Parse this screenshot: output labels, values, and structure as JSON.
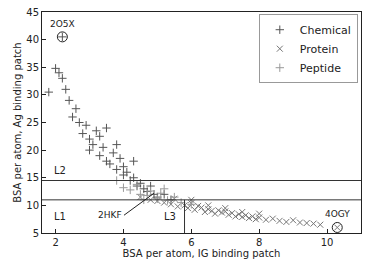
{
  "chart_data": {
    "type": "scatter",
    "x_label": "BSA per atom, IG binding patch",
    "y_label": "BSA per atom, Ag binding patch",
    "xlim": [
      1.6,
      11
    ],
    "xticks": [
      2,
      4,
      6,
      8,
      10
    ],
    "ylim": [
      5,
      45
    ],
    "yticks": [
      5,
      10,
      15,
      20,
      25,
      30,
      35,
      40,
      45
    ],
    "grid": false,
    "legend": "upper right",
    "series": [
      {
        "name": "Chemical",
        "color": "#555555",
        "marker": "plus",
        "x": [
          1.8,
          2.0,
          2.1,
          2.2,
          2.3,
          2.4,
          2.5,
          2.6,
          2.7,
          2.8,
          2.9,
          3.0,
          3.0,
          3.1,
          3.2,
          3.3,
          3.3,
          3.4,
          3.5,
          3.5,
          3.6,
          3.7,
          3.8,
          3.8,
          3.9,
          4.0,
          4.0,
          4.1,
          4.2,
          4.3,
          4.3,
          4.4,
          4.5,
          4.6,
          4.7,
          4.8,
          4.9,
          5.0,
          5.2,
          5.4,
          2.2
        ],
        "values": [
          30.5,
          34.8,
          34,
          33,
          31,
          29,
          26,
          27.5,
          25,
          23,
          24.5,
          22,
          20,
          21,
          23.5,
          19,
          22.5,
          20.5,
          18,
          24,
          17.5,
          19.5,
          16.5,
          21,
          18.5,
          15.5,
          17,
          16,
          14.5,
          15,
          18,
          13.5,
          14,
          13,
          12.5,
          13.5,
          12,
          11.5,
          12,
          11,
          40.5
        ]
      },
      {
        "name": "Protein",
        "color": "#777777",
        "marker": "x",
        "x": [
          4.5,
          4.8,
          5.0,
          5.2,
          5.4,
          5.5,
          5.6,
          5.8,
          5.9,
          6.0,
          6.1,
          6.2,
          6.3,
          6.4,
          6.5,
          6.6,
          6.7,
          6.8,
          6.9,
          7.0,
          7.1,
          7.2,
          7.3,
          7.4,
          7.5,
          7.6,
          7.7,
          7.8,
          7.9,
          8.0,
          8.2,
          8.4,
          8.6,
          8.8,
          9.0,
          9.2,
          9.4,
          9.6,
          9.8,
          10.3,
          6.0,
          6.5,
          7.0,
          7.5,
          8.0
        ],
        "values": [
          11.5,
          11,
          10.8,
          10.5,
          10.2,
          11.2,
          9.8,
          10,
          9.5,
          10.4,
          9.2,
          9.9,
          9.6,
          8.8,
          9.3,
          9.0,
          8.5,
          9.1,
          8.7,
          8.9,
          8.3,
          8.6,
          8.0,
          8.4,
          7.9,
          8.2,
          7.7,
          8.0,
          7.5,
          7.8,
          7.4,
          7.6,
          7.2,
          7.0,
          7.3,
          6.9,
          6.8,
          6.7,
          6.5,
          6.0,
          11.0,
          10.0,
          9.5,
          8.8,
          8.5
        ]
      },
      {
        "name": "Peptide",
        "color": "#999999",
        "marker": "plus",
        "x": [
          3.8,
          4.0,
          4.2,
          4.4,
          4.5,
          4.7,
          4.8,
          5.0,
          5.1,
          5.3,
          5.5,
          5.7,
          6.0,
          4.6,
          5.2
        ],
        "values": [
          14.5,
          13.2,
          12.8,
          13.8,
          12,
          11.8,
          12.6,
          11.2,
          12.2,
          10.9,
          11.5,
          10.5,
          10.2,
          11.0,
          13.0
        ]
      }
    ],
    "lines": [
      {
        "label": "L1",
        "orientation": "horizontal",
        "value": 11.0
      },
      {
        "label": "L2",
        "orientation": "horizontal",
        "value": 14.5
      },
      {
        "label": "L3",
        "orientation": "vertical",
        "value": 5.8
      }
    ],
    "annotations": [
      {
        "text": "2O5X",
        "x": 2.2,
        "y": 40.5,
        "marker": "circle"
      },
      {
        "text": "4OGY",
        "x": 10.3,
        "y": 6.0,
        "marker": "circle"
      },
      {
        "text": "2HKF",
        "x": 4.9,
        "y": 12.2,
        "marker": "arrow"
      }
    ]
  }
}
